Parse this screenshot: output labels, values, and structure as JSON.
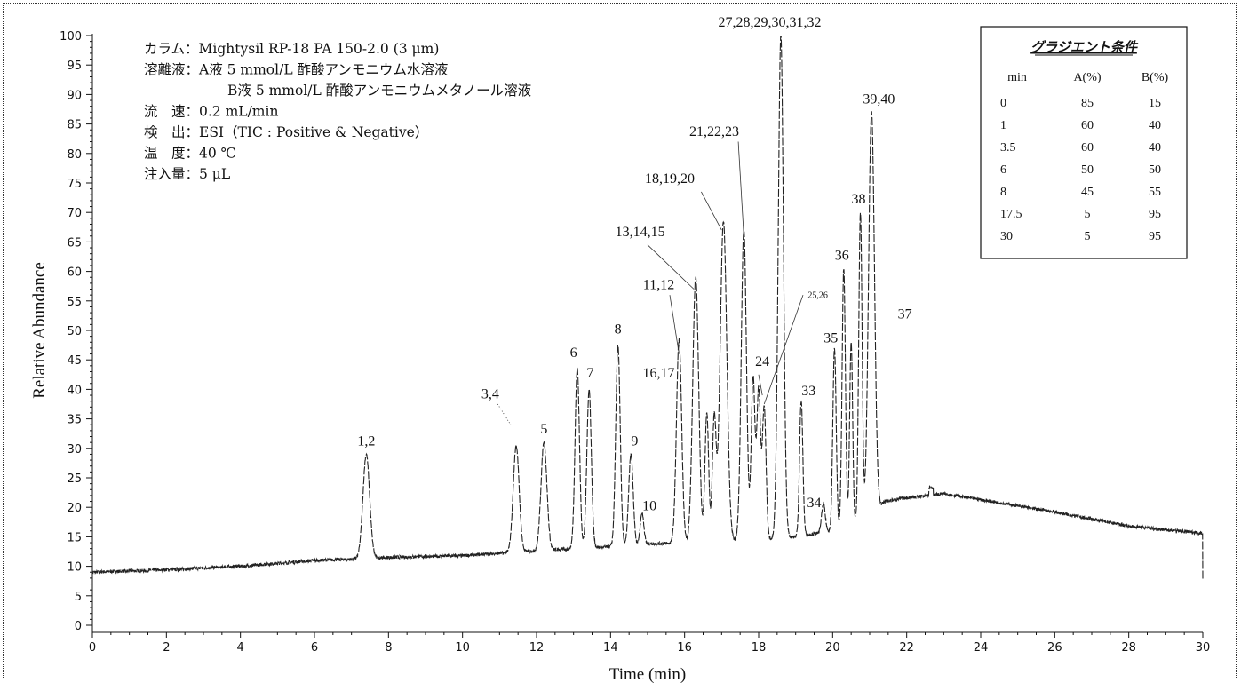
{
  "chart_data": {
    "type": "line",
    "xlabel": "Time (min)",
    "ylabel": "Relative Abundance",
    "xlim": [
      0,
      30
    ],
    "ylim": [
      0,
      100
    ],
    "x_ticks": [
      0,
      2,
      4,
      6,
      8,
      10,
      12,
      14,
      16,
      18,
      20,
      22,
      24,
      26,
      28,
      30
    ],
    "y_ticks": [
      0,
      5,
      10,
      15,
      20,
      25,
      30,
      35,
      40,
      45,
      50,
      55,
      60,
      65,
      70,
      75,
      80,
      85,
      90,
      95,
      100
    ],
    "baseline": [
      [
        0,
        9
      ],
      [
        2,
        9.4
      ],
      [
        4,
        10
      ],
      [
        6,
        11
      ],
      [
        7,
        11.2
      ],
      [
        8,
        11.5
      ],
      [
        10,
        11.8
      ],
      [
        11,
        12.2
      ],
      [
        12,
        12.6
      ],
      [
        13,
        13
      ],
      [
        14,
        13.3
      ],
      [
        15,
        13.8
      ],
      [
        16,
        14
      ],
      [
        17,
        14.3
      ],
      [
        18,
        14.5
      ],
      [
        19,
        15
      ],
      [
        20,
        16
      ],
      [
        21,
        18
      ],
      [
        21.4,
        21
      ],
      [
        22,
        21.6
      ],
      [
        23,
        22.3
      ],
      [
        24,
        21.3
      ],
      [
        26,
        19.2
      ],
      [
        28,
        16.8
      ],
      [
        30,
        15.6
      ]
    ],
    "peaks": [
      {
        "t": 7.4,
        "h": 29,
        "w": 0.09
      },
      {
        "t": 11.45,
        "h": 30.5,
        "w": 0.08
      },
      {
        "t": 12.2,
        "h": 31,
        "w": 0.08
      },
      {
        "t": 13.1,
        "h": 43.5,
        "w": 0.06
      },
      {
        "t": 13.42,
        "h": 40,
        "w": 0.06
      },
      {
        "t": 14.2,
        "h": 47.5,
        "w": 0.06
      },
      {
        "t": 14.55,
        "h": 29,
        "w": 0.06
      },
      {
        "t": 14.85,
        "h": 19,
        "w": 0.05
      },
      {
        "t": 15.85,
        "h": 48.5,
        "w": 0.07
      },
      {
        "t": 16.3,
        "h": 59,
        "w": 0.08
      },
      {
        "t": 16.6,
        "h": 36,
        "w": 0.05
      },
      {
        "t": 16.8,
        "h": 35,
        "w": 0.05
      },
      {
        "t": 17.05,
        "h": 68.5,
        "w": 0.09
      },
      {
        "t": 17.6,
        "h": 67,
        "w": 0.07
      },
      {
        "t": 17.85,
        "h": 42,
        "w": 0.05
      },
      {
        "t": 18.0,
        "h": 40,
        "w": 0.05
      },
      {
        "t": 18.15,
        "h": 37,
        "w": 0.05
      },
      {
        "t": 18.6,
        "h": 100,
        "w": 0.07
      },
      {
        "t": 19.15,
        "h": 38,
        "w": 0.045
      },
      {
        "t": 19.75,
        "h": 20.5,
        "w": 0.05
      },
      {
        "t": 20.05,
        "h": 47,
        "w": 0.045
      },
      {
        "t": 20.3,
        "h": 60.5,
        "w": 0.045
      },
      {
        "t": 20.5,
        "h": 48,
        "w": 0.04
      },
      {
        "t": 20.75,
        "h": 70,
        "w": 0.045
      },
      {
        "t": 21.05,
        "h": 87,
        "w": 0.08
      }
    ],
    "peak_labels": [
      {
        "text": "1,2",
        "x": 7.4,
        "y": 30.5
      },
      {
        "text": "3,4",
        "x": 10.75,
        "y": 38.5
      },
      {
        "text": "5",
        "x": 12.2,
        "y": 32.5
      },
      {
        "text": "6",
        "x": 13.0,
        "y": 45.5
      },
      {
        "text": "7",
        "x": 13.45,
        "y": 42
      },
      {
        "text": "8",
        "x": 14.2,
        "y": 49.5
      },
      {
        "text": "9",
        "x": 14.65,
        "y": 30.5
      },
      {
        "text": "10",
        "x": 15.05,
        "y": 19.5
      },
      {
        "text": "11,12",
        "x": 15.3,
        "y": 57
      },
      {
        "text": "13,14,15",
        "x": 14.8,
        "y": 66
      },
      {
        "text": "16,17",
        "x": 15.3,
        "y": 42
      },
      {
        "text": "18,19,20",
        "x": 15.6,
        "y": 75
      },
      {
        "text": "21,22,23",
        "x": 16.8,
        "y": 83
      },
      {
        "text": "24",
        "x": 18.1,
        "y": 44
      },
      {
        "text": "25,26",
        "x": 19.6,
        "y": 55.5
      },
      {
        "text": "27,28,29,30,31,32",
        "x": 18.3,
        "y": 101.5
      },
      {
        "text": "33",
        "x": 19.35,
        "y": 39
      },
      {
        "text": "34",
        "x": 19.5,
        "y": 20
      },
      {
        "text": "35",
        "x": 19.95,
        "y": 48
      },
      {
        "text": "36",
        "x": 20.25,
        "y": 62
      },
      {
        "text": "37",
        "x": 21.95,
        "y": 52
      },
      {
        "text": "38",
        "x": 20.7,
        "y": 71.5
      },
      {
        "text": "39,40",
        "x": 21.25,
        "y": 88.5
      }
    ],
    "conditions": [
      "カラム：Mightysil RP-18 PA 150-2.0 (3 μm)",
      "溶離液：A液 5 mmol/L 酢酸アンモニウム水溶液",
      "B液 5 mmol/L 酢酸アンモニウムメタノール溶液",
      "流　速：0.2 mL/min",
      "検　出：ESI（TIC : Positive & Negative）",
      "温　度：40 ℃",
      "注入量：5 μL"
    ],
    "gradient": {
      "title": "グラジエント条件",
      "headers": [
        "min",
        "A(%)",
        "B(%)"
      ],
      "rows": [
        [
          "0",
          "85",
          "15"
        ],
        [
          "1",
          "60",
          "40"
        ],
        [
          "3.5",
          "60",
          "40"
        ],
        [
          "6",
          "50",
          "50"
        ],
        [
          "8",
          "45",
          "55"
        ],
        [
          "17.5",
          "5",
          "95"
        ],
        [
          "30",
          "5",
          "95"
        ]
      ]
    }
  }
}
